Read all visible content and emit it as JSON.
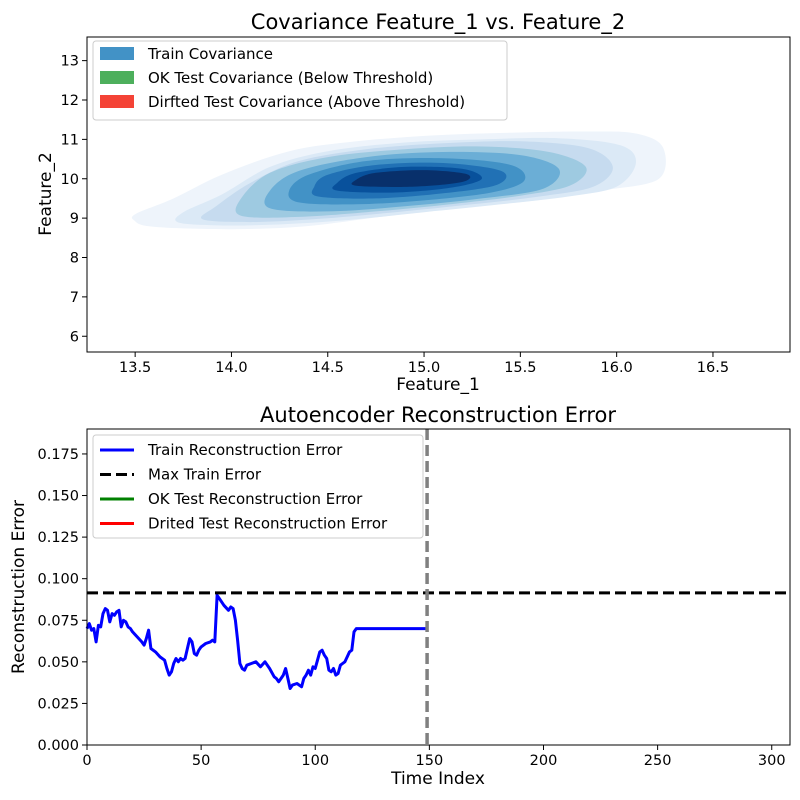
{
  "chart_data": [
    {
      "type": "kde-contour",
      "title": "Covariance Feature_1 vs. Feature_2",
      "xlabel": "Feature_1",
      "ylabel": "Feature_2",
      "xlim": [
        13.25,
        16.9
      ],
      "ylim": [
        5.6,
        13.6
      ],
      "xticks": [
        "13.5",
        "14.0",
        "14.5",
        "15.0",
        "15.5",
        "16.0",
        "16.5"
      ],
      "yticks": [
        "6",
        "7",
        "8",
        "9",
        "10",
        "11",
        "12",
        "13"
      ],
      "legend": {
        "position": "top-left",
        "entries": [
          {
            "label": "Train Covariance",
            "color": "#4292c6"
          },
          {
            "label": "OK Test Covariance (Below Threshold)",
            "color": "#4daf5c"
          },
          {
            "label": "Dirfted Test Covariance (Above Threshold)",
            "color": "#f44336"
          }
        ]
      },
      "series": [
        {
          "name": "Train Covariance",
          "center": [
            15.0,
            10.15
          ],
          "levels": [
            {
              "color": "#eef4fb",
              "points": [
                [
                  13.5,
                  8.92
                ],
                [
                  13.56,
                  8.8
                ],
                [
                  13.75,
                  8.74
                ],
                [
                  14.05,
                  8.72
                ],
                [
                  14.4,
                  8.8
                ],
                [
                  14.8,
                  9.05
                ],
                [
                  15.2,
                  9.3
                ],
                [
                  15.6,
                  9.5
                ],
                [
                  15.95,
                  9.72
                ],
                [
                  16.22,
                  10.0
                ],
                [
                  16.24,
                  10.8
                ],
                [
                  16.1,
                  11.15
                ],
                [
                  15.85,
                  11.2
                ],
                [
                  15.45,
                  11.17
                ],
                [
                  15.05,
                  11.1
                ],
                [
                  14.65,
                  10.95
                ],
                [
                  14.3,
                  10.7
                ],
                [
                  13.95,
                  10.1
                ],
                [
                  13.7,
                  9.5
                ],
                [
                  13.5,
                  9.1
                ]
              ]
            },
            {
              "color": "#dbe9f6",
              "points": [
                [
                  13.72,
                  8.9
                ],
                [
                  13.9,
                  8.82
                ],
                [
                  14.2,
                  8.83
                ],
                [
                  14.6,
                  8.95
                ],
                [
                  15.0,
                  9.15
                ],
                [
                  15.4,
                  9.35
                ],
                [
                  15.75,
                  9.55
                ],
                [
                  16.0,
                  9.8
                ],
                [
                  16.1,
                  10.4
                ],
                [
                  16.02,
                  10.85
                ],
                [
                  15.7,
                  11.03
                ],
                [
                  15.3,
                  11.0
                ],
                [
                  14.9,
                  10.92
                ],
                [
                  14.5,
                  10.7
                ],
                [
                  14.2,
                  10.3
                ],
                [
                  13.95,
                  9.6
                ],
                [
                  13.75,
                  9.15
                ]
              ]
            },
            {
              "color": "#c6dbef",
              "points": [
                [
                  13.85,
                  8.97
                ],
                [
                  14.1,
                  8.9
                ],
                [
                  14.45,
                  8.98
                ],
                [
                  14.85,
                  9.15
                ],
                [
                  15.25,
                  9.35
                ],
                [
                  15.6,
                  9.55
                ],
                [
                  15.88,
                  9.8
                ],
                [
                  15.98,
                  10.3
                ],
                [
                  15.85,
                  10.78
                ],
                [
                  15.5,
                  10.95
                ],
                [
                  15.1,
                  10.9
                ],
                [
                  14.7,
                  10.75
                ],
                [
                  14.35,
                  10.45
                ],
                [
                  14.1,
                  9.9
                ],
                [
                  13.92,
                  9.3
                ]
              ]
            },
            {
              "color": "#9ecae1",
              "points": [
                [
                  14.05,
                  9.06
                ],
                [
                  14.35,
                  9.03
                ],
                [
                  14.75,
                  9.17
                ],
                [
                  15.15,
                  9.36
                ],
                [
                  15.5,
                  9.57
                ],
                [
                  15.76,
                  9.83
                ],
                [
                  15.84,
                  10.3
                ],
                [
                  15.65,
                  10.68
                ],
                [
                  15.3,
                  10.82
                ],
                [
                  14.9,
                  10.75
                ],
                [
                  14.5,
                  10.55
                ],
                [
                  14.2,
                  10.15
                ],
                [
                  14.05,
                  9.5
                ]
              ]
            },
            {
              "color": "#6baed6",
              "points": [
                [
                  14.2,
                  9.25
                ],
                [
                  14.5,
                  9.17
                ],
                [
                  14.9,
                  9.3
                ],
                [
                  15.3,
                  9.5
                ],
                [
                  15.62,
                  9.75
                ],
                [
                  15.7,
                  10.25
                ],
                [
                  15.5,
                  10.6
                ],
                [
                  15.1,
                  10.68
                ],
                [
                  14.7,
                  10.55
                ],
                [
                  14.35,
                  10.2
                ],
                [
                  14.2,
                  9.7
                ]
              ]
            },
            {
              "color": "#4292c6",
              "points": [
                [
                  14.35,
                  9.4
                ],
                [
                  14.65,
                  9.35
                ],
                [
                  15.0,
                  9.45
                ],
                [
                  15.35,
                  9.65
                ],
                [
                  15.52,
                  9.95
                ],
                [
                  15.45,
                  10.35
                ],
                [
                  15.1,
                  10.52
                ],
                [
                  14.7,
                  10.45
                ],
                [
                  14.4,
                  10.1
                ],
                [
                  14.3,
                  9.7
                ]
              ]
            },
            {
              "color": "#2171b5",
              "points": [
                [
                  14.45,
                  9.55
                ],
                [
                  14.75,
                  9.5
                ],
                [
                  15.1,
                  9.63
                ],
                [
                  15.38,
                  9.85
                ],
                [
                  15.4,
                  10.2
                ],
                [
                  15.1,
                  10.4
                ],
                [
                  14.75,
                  10.35
                ],
                [
                  14.5,
                  10.1
                ],
                [
                  14.43,
                  9.8
                ]
              ]
            },
            {
              "color": "#08519c",
              "points": [
                [
                  14.55,
                  9.7
                ],
                [
                  14.85,
                  9.65
                ],
                [
                  15.15,
                  9.78
                ],
                [
                  15.3,
                  10.0
                ],
                [
                  15.2,
                  10.25
                ],
                [
                  14.9,
                  10.3
                ],
                [
                  14.65,
                  10.15
                ],
                [
                  14.55,
                  9.9
                ]
              ]
            },
            {
              "color": "#08306b",
              "points": [
                [
                  14.65,
                  9.82
                ],
                [
                  14.95,
                  9.8
                ],
                [
                  15.2,
                  9.92
                ],
                [
                  15.22,
                  10.12
                ],
                [
                  15.0,
                  10.22
                ],
                [
                  14.75,
                  10.15
                ],
                [
                  14.65,
                  9.98
                ]
              ]
            }
          ]
        }
      ]
    },
    {
      "type": "line",
      "title": "Autoencoder Reconstruction Error",
      "xlabel": "Time Index",
      "ylabel": "Reconstruction Error",
      "xlim": [
        0,
        308
      ],
      "ylim": [
        0,
        0.19
      ],
      "xticks": [
        "0",
        "50",
        "100",
        "150",
        "200",
        "250",
        "300"
      ],
      "yticks": [
        "0.000",
        "0.025",
        "0.050",
        "0.075",
        "0.100",
        "0.125",
        "0.150",
        "0.175"
      ],
      "legend": {
        "position": "top-left",
        "entries": [
          {
            "label": "Train Reconstruction Error",
            "color": "#0000ff",
            "style": "solid"
          },
          {
            "label": "Max Train Error",
            "color": "#000000",
            "style": "dashed"
          },
          {
            "label": "OK Test Reconstruction Error",
            "color": "#008000",
            "style": "solid"
          },
          {
            "label": "Drited Test Reconstruction Error",
            "color": "#ff0000",
            "style": "solid"
          }
        ]
      },
      "max_train_error": 0.0915,
      "split_index": 149,
      "series": [
        {
          "name": "Train Reconstruction Error",
          "color": "#0000ff",
          "x": [
            0,
            1,
            2,
            3,
            4,
            5,
            6,
            7,
            8,
            9,
            10,
            11,
            12,
            13,
            14,
            15,
            16,
            17,
            18,
            19,
            20,
            22,
            24,
            25,
            26,
            27,
            28,
            30,
            32,
            34,
            35,
            36,
            37,
            38,
            39,
            40,
            41,
            42,
            43,
            44,
            45,
            46,
            47,
            48,
            49,
            50,
            52,
            54,
            55,
            56,
            57,
            58,
            60,
            62,
            63,
            64,
            65,
            66,
            67,
            68,
            69,
            70,
            72,
            74,
            76,
            78,
            80,
            82,
            83,
            84,
            85,
            86,
            87,
            88,
            89,
            90,
            92,
            94,
            95,
            96,
            97,
            98,
            99,
            100,
            101,
            102,
            103,
            104,
            105,
            106,
            107,
            108,
            109,
            110,
            111,
            112,
            113,
            114,
            115,
            116,
            117,
            118,
            120,
            125,
            130,
            135,
            140,
            145,
            149
          ],
          "y": [
            0.07,
            0.073,
            0.069,
            0.07,
            0.062,
            0.072,
            0.071,
            0.079,
            0.082,
            0.081,
            0.074,
            0.079,
            0.078,
            0.08,
            0.081,
            0.071,
            0.075,
            0.074,
            0.071,
            0.07,
            0.068,
            0.065,
            0.062,
            0.06,
            0.064,
            0.069,
            0.058,
            0.056,
            0.053,
            0.051,
            0.046,
            0.042,
            0.044,
            0.049,
            0.052,
            0.05,
            0.052,
            0.051,
            0.052,
            0.058,
            0.064,
            0.062,
            0.055,
            0.054,
            0.057,
            0.059,
            0.061,
            0.062,
            0.063,
            0.062,
            0.09,
            0.088,
            0.084,
            0.081,
            0.083,
            0.082,
            0.075,
            0.063,
            0.049,
            0.046,
            0.045,
            0.048,
            0.049,
            0.05,
            0.047,
            0.05,
            0.046,
            0.041,
            0.04,
            0.038,
            0.04,
            0.042,
            0.046,
            0.04,
            0.034,
            0.036,
            0.037,
            0.035,
            0.04,
            0.042,
            0.045,
            0.042,
            0.047,
            0.046,
            0.051,
            0.056,
            0.057,
            0.054,
            0.052,
            0.045,
            0.044,
            0.046,
            0.042,
            0.043,
            0.048,
            0.049,
            0.05,
            0.053,
            0.056,
            0.057,
            0.068,
            0.07,
            0.07,
            0.07,
            0.07,
            0.07,
            0.07,
            0.07,
            0.07
          ]
        }
      ]
    }
  ]
}
